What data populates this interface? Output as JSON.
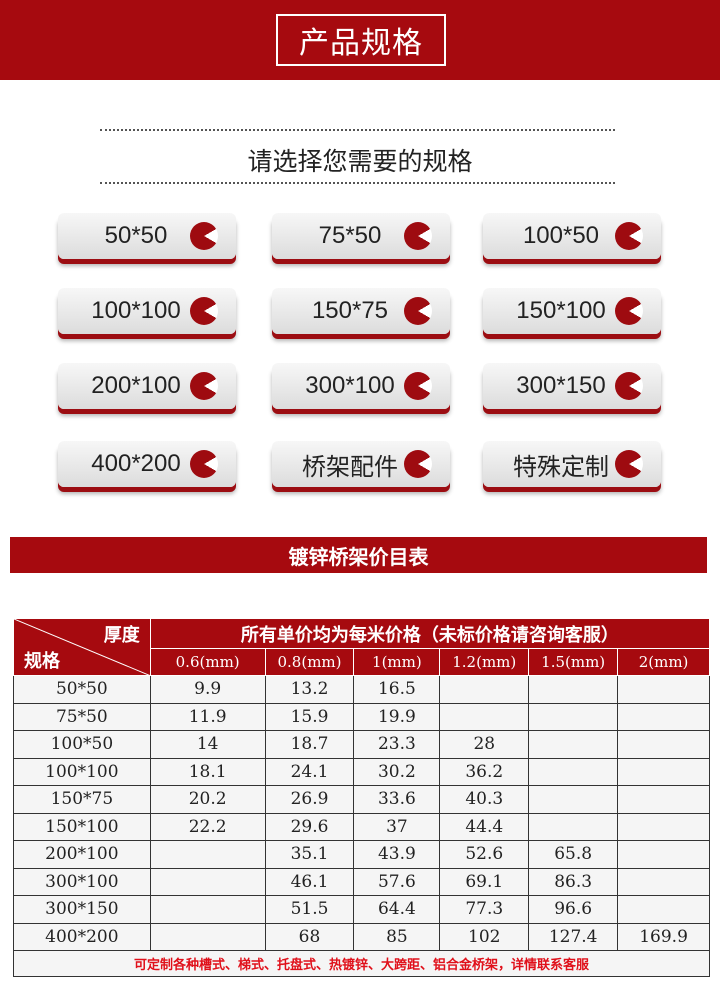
{
  "header": {
    "title": "产品规格"
  },
  "subtitle": "请选择您需要的规格",
  "buttons": [
    "50*50",
    "75*50",
    "100*50",
    "100*100",
    "150*75",
    "150*100",
    "200*100",
    "300*100",
    "300*150",
    "400*200",
    "桥架配件",
    "特殊定制"
  ],
  "price_title": "镀锌桥架价目表",
  "table": {
    "corner_top": "厚度",
    "corner_bottom": "规格",
    "header": "所有单价均为每米价格（未标价格请咨询客服）",
    "columns": [
      "0.6(mm)",
      "0.8(mm)",
      "1(mm)",
      "1.2(mm)",
      "1.5(mm)",
      "2(mm)"
    ],
    "rows": [
      [
        "50*50",
        "9.9",
        "13.2",
        "16.5",
        "",
        "",
        ""
      ],
      [
        "75*50",
        "11.9",
        "15.9",
        "19.9",
        "",
        "",
        ""
      ],
      [
        "100*50",
        "14",
        "18.7",
        "23.3",
        "28",
        "",
        ""
      ],
      [
        "100*100",
        "18.1",
        "24.1",
        "30.2",
        "36.2",
        "",
        ""
      ],
      [
        "150*75",
        "20.2",
        "26.9",
        "33.6",
        "40.3",
        "",
        ""
      ],
      [
        "150*100",
        "22.2",
        "29.6",
        "37",
        "44.4",
        "",
        ""
      ],
      [
        "200*100",
        "",
        "35.1",
        "43.9",
        "52.6",
        "65.8",
        ""
      ],
      [
        "300*100",
        "",
        "46.1",
        "57.6",
        "69.1",
        "86.3",
        ""
      ],
      [
        "300*150",
        "",
        "51.5",
        "64.4",
        "77.3",
        "96.6",
        ""
      ],
      [
        "400*200",
        "",
        "68",
        "85",
        "102",
        "127.4",
        "169.9"
      ]
    ],
    "note": "可定制各种槽式、梯式、托盘式、热镀锌、大跨距、铝合金桥架，详情联系客服"
  },
  "colors": {
    "brand_red": "#a60a0f",
    "note_red": "#e0101a"
  }
}
